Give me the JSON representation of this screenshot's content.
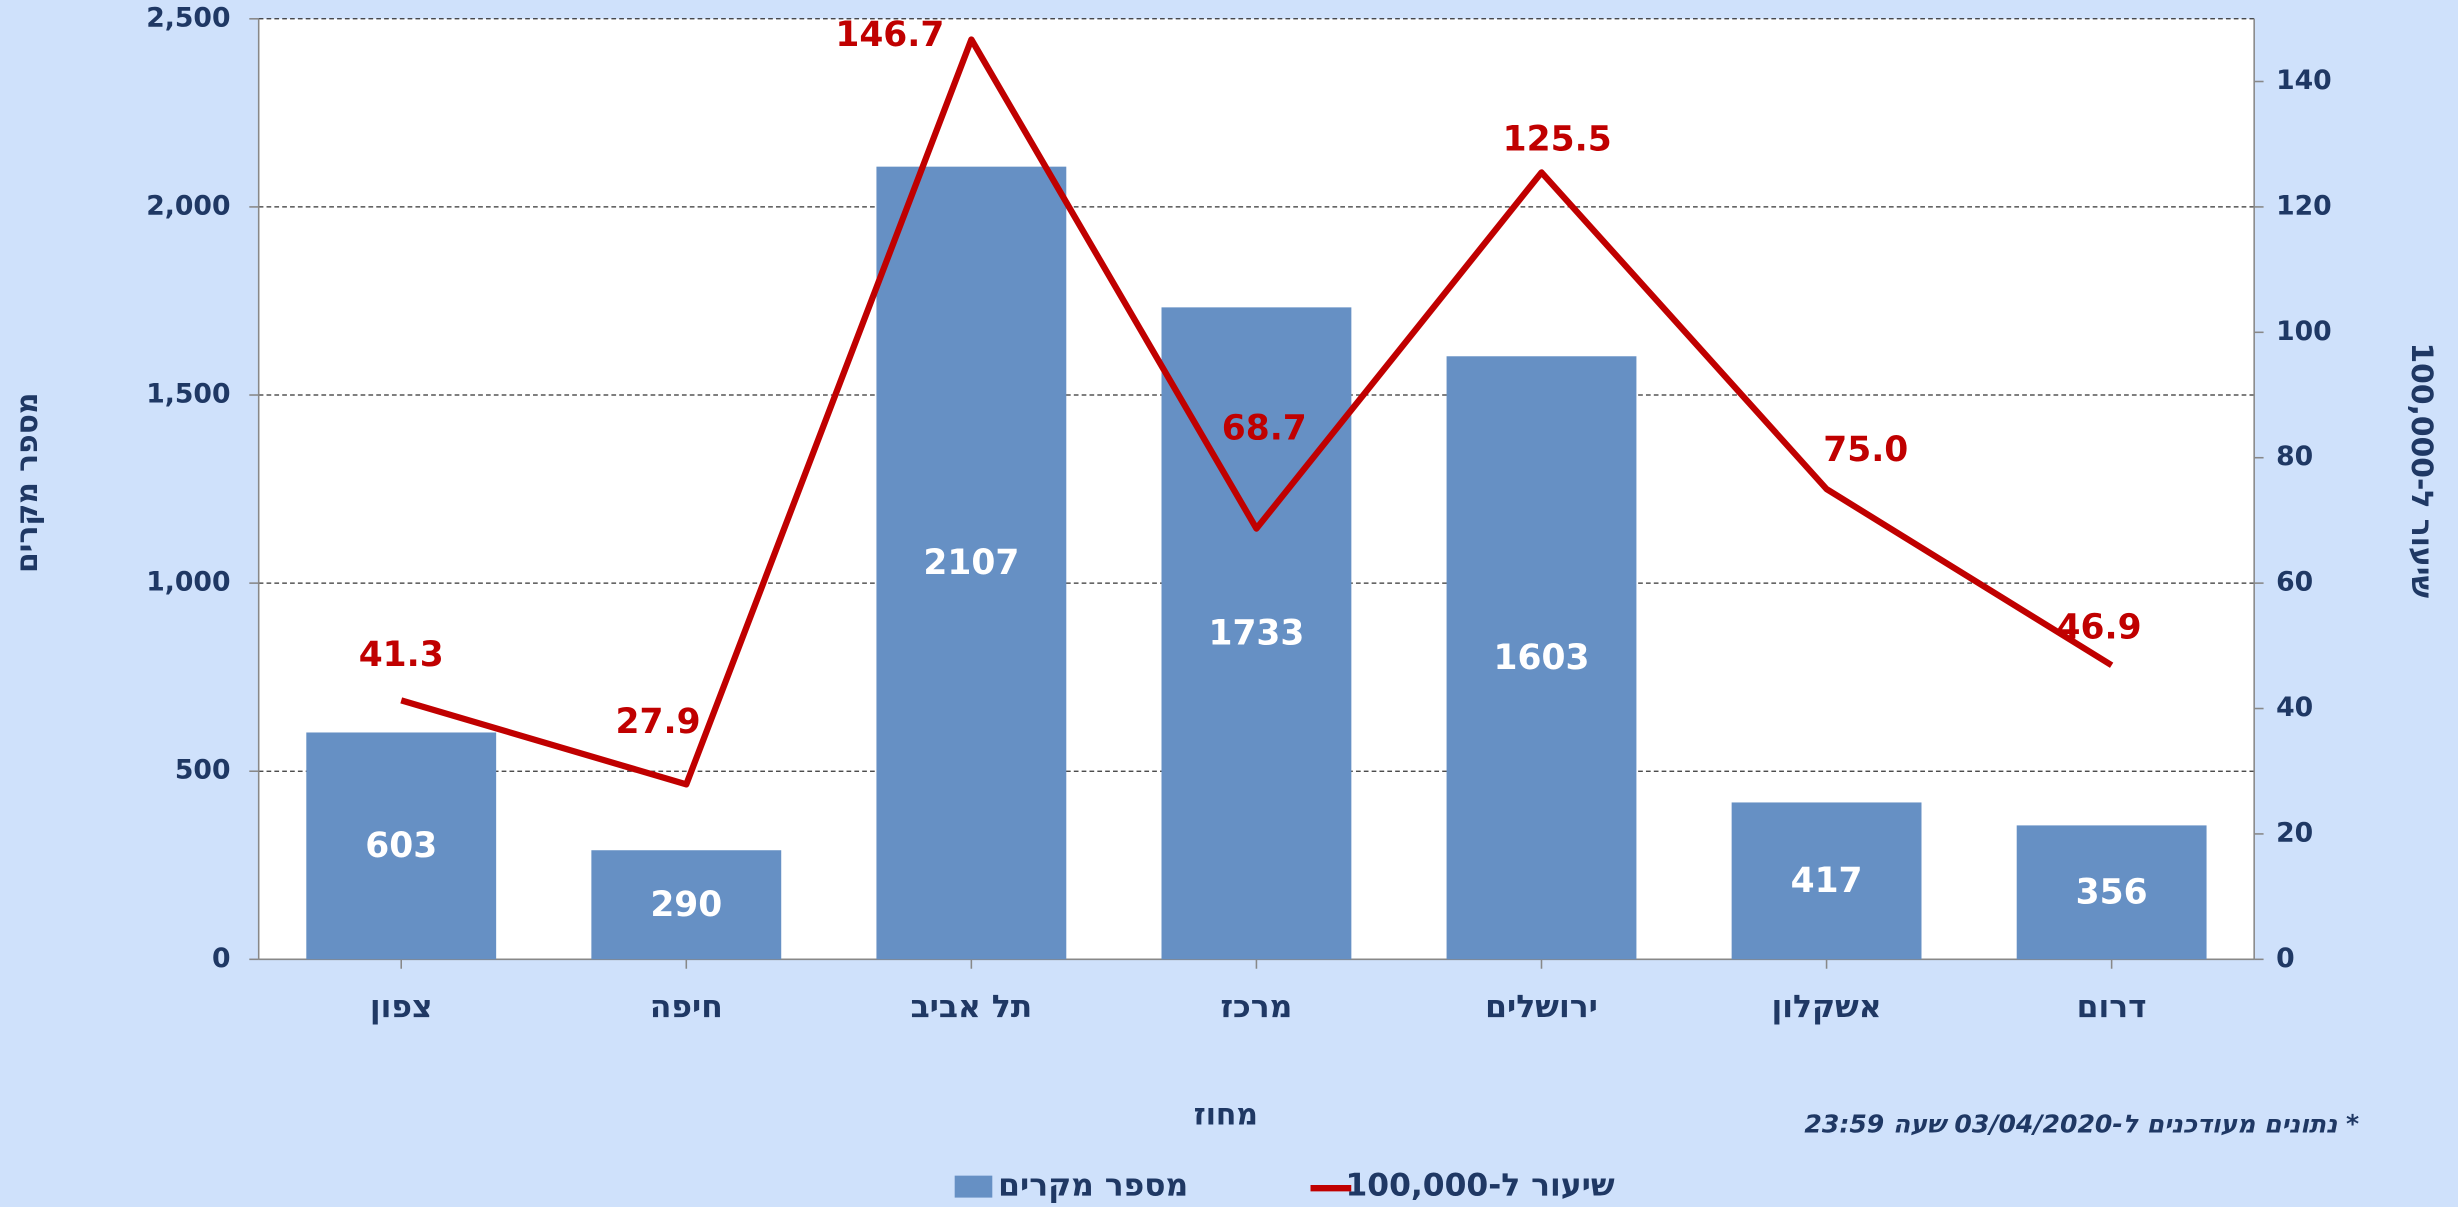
{
  "chart_data": {
    "type": "bar-line",
    "categories": [
      "צפון",
      "חיפה",
      "תל אביב",
      "מרכז",
      "ירושלים",
      "אשקלון",
      "דרום"
    ],
    "series": [
      {
        "name": "מספר מקרים",
        "type": "bar",
        "color": "#6690c4",
        "values": [
          603,
          290,
          2107,
          1733,
          1603,
          417,
          356
        ]
      },
      {
        "name": "שיעור ל-100,000",
        "type": "line",
        "axis": "y2",
        "color": "#c00000",
        "values": [
          41.3,
          27.9,
          146.7,
          68.7,
          125.5,
          75.0,
          46.9
        ],
        "value_labels": [
          "41.3",
          "27.9",
          "146.7",
          "68.7",
          "125.5",
          "75.0",
          "46.9"
        ]
      }
    ],
    "x_label": "מחוז",
    "y_label": "מספר מקרים",
    "y2_label": "שיעור ל-100,000",
    "note": "* נתונים מעודכנים ל-03/04/2020  שעה 23:59",
    "ylim": [
      0,
      2500
    ],
    "yticks": [
      0,
      500,
      {
        "value": 1000,
        "label": "1,000"
      },
      {
        "value": 1500,
        "label": "1,500"
      },
      {
        "value": 2000,
        "label": "2,000"
      },
      {
        "value": 2500,
        "label": "2,500"
      }
    ],
    "y2lim": [
      0,
      150
    ],
    "y2ticks": [
      0,
      20,
      40,
      60,
      80,
      100,
      120,
      140
    ],
    "grid": true,
    "legend": "bottom"
  }
}
